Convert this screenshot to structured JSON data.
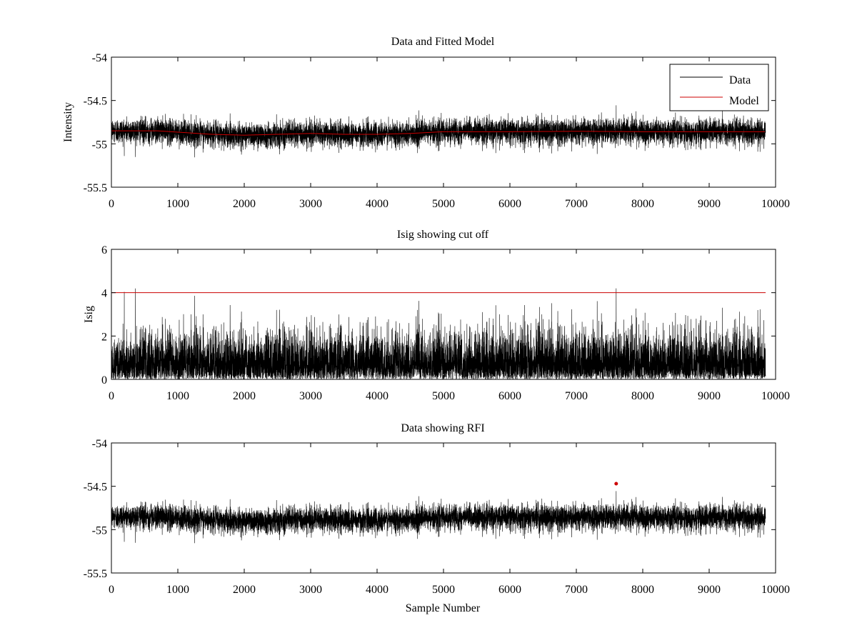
{
  "figure": {
    "background": "#ffffff",
    "data_color": "#000000",
    "model_color": "#cc0000"
  },
  "chart_data": [
    {
      "type": "line",
      "title": "Data and Fitted Model",
      "xlabel": "",
      "ylabel": "Intensity",
      "xlim": [
        0,
        10000
      ],
      "ylim": [
        -55.5,
        -54
      ],
      "xticks": [
        "0",
        "1000",
        "2000",
        "3000",
        "4000",
        "5000",
        "6000",
        "7000",
        "8000",
        "9000",
        "10000"
      ],
      "yticks": [
        "-54",
        "-54.5",
        "-55",
        "-55.5"
      ],
      "grid": false,
      "legend": "top-right",
      "n_samples": 9850,
      "series": [
        {
          "name": "Data",
          "kind": "noise",
          "color": "#000000",
          "approx_mean": -54.88,
          "approx_min": -55.23,
          "approx_max": -54.49
        },
        {
          "name": "Model",
          "kind": "line",
          "color": "#cc0000",
          "x": [
            0,
            700,
            1500,
            2000,
            2500,
            3000,
            3500,
            4000,
            4500,
            5000,
            6000,
            7000,
            8000,
            9000,
            9850
          ],
          "y": [
            -54.85,
            -54.85,
            -54.89,
            -54.9,
            -54.89,
            -54.88,
            -54.89,
            -54.89,
            -54.88,
            -54.86,
            -54.86,
            -54.855,
            -54.86,
            -54.86,
            -54.86
          ]
        }
      ]
    },
    {
      "type": "line",
      "title": "Isig showing cut off",
      "xlabel": "",
      "ylabel": "Isig",
      "xlim": [
        0,
        10000
      ],
      "ylim": [
        0,
        6
      ],
      "xticks": [
        "0",
        "1000",
        "2000",
        "3000",
        "4000",
        "5000",
        "6000",
        "7000",
        "8000",
        "9000",
        "10000"
      ],
      "yticks": [
        "0",
        "2",
        "4",
        "6"
      ],
      "grid": false,
      "n_samples": 9850,
      "cutoff": 4,
      "series": [
        {
          "kind": "noise-abs",
          "color": "#000000",
          "approx_max": 4.2,
          "spike_x": 7600
        },
        {
          "kind": "hline",
          "color": "#cc0000",
          "y": 4
        }
      ]
    },
    {
      "type": "line",
      "title": "Data showing RFI",
      "xlabel": "Sample Number",
      "ylabel": "",
      "xlim": [
        0,
        10000
      ],
      "ylim": [
        -55.5,
        -54
      ],
      "xticks": [
        "0",
        "1000",
        "2000",
        "3000",
        "4000",
        "5000",
        "6000",
        "7000",
        "8000",
        "9000",
        "10000"
      ],
      "yticks": [
        "-54",
        "-54.5",
        "-55",
        "-55.5"
      ],
      "grid": false,
      "n_samples": 9850,
      "series": [
        {
          "kind": "noise",
          "color": "#000000",
          "approx_mean": -54.88,
          "approx_min": -55.23,
          "approx_max": -54.49
        },
        {
          "kind": "marker",
          "color": "#cc0000",
          "x": [
            7600
          ],
          "y": [
            -54.47
          ]
        }
      ]
    }
  ]
}
